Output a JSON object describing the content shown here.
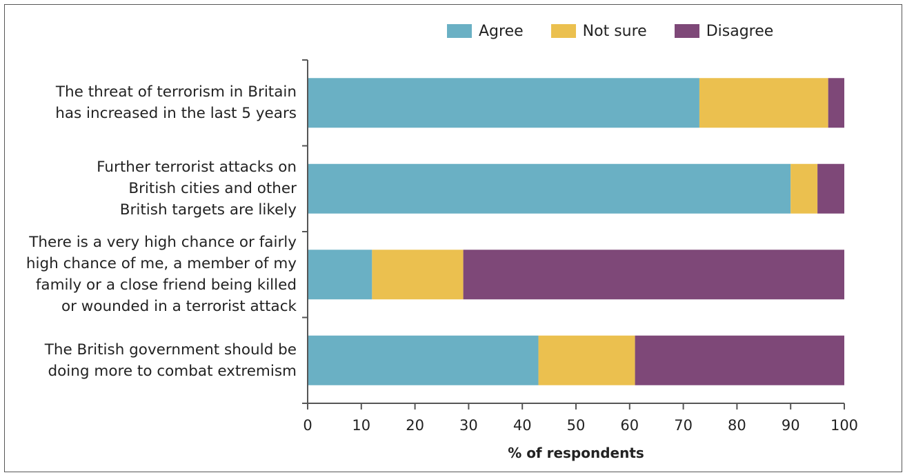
{
  "chart_data": {
    "type": "bar",
    "orientation": "horizontal",
    "stacked": true,
    "categories": [
      [
        "The threat of terrorism in Britain",
        "has increased in the last 5 years"
      ],
      [
        "Further terrorist attacks on",
        "British cities and other",
        "British targets are likely"
      ],
      [
        "There is a very high chance or fairly",
        "high chance of me, a member of my",
        "family or a close friend being killed",
        "or wounded in a terrorist attack"
      ],
      [
        "The British government should be",
        "doing more to combat extremism"
      ]
    ],
    "series": [
      {
        "name": "Agree",
        "color": "#6ab0c4",
        "values": [
          73,
          90,
          12,
          43
        ]
      },
      {
        "name": "Not sure",
        "color": "#ebc04f",
        "values": [
          24,
          5,
          17,
          18
        ]
      },
      {
        "name": "Disagree",
        "color": "#7e4878",
        "values": [
          3,
          5,
          71,
          39
        ]
      }
    ],
    "xlabel": "% of respondents",
    "xlim": [
      0,
      100
    ],
    "xticks": [
      0,
      10,
      20,
      30,
      40,
      50,
      60,
      70,
      80,
      90,
      100
    ],
    "legend_position": "top-right",
    "grid": false
  }
}
